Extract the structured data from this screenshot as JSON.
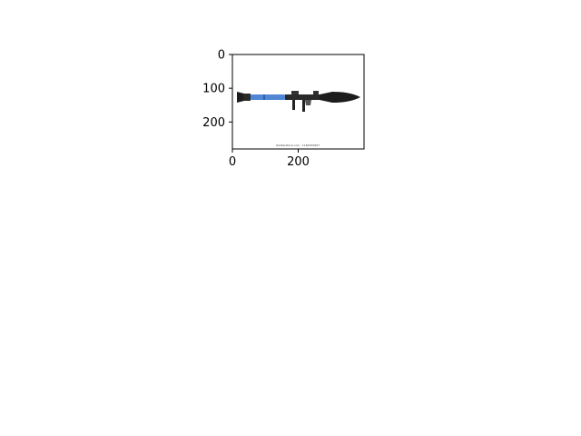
{
  "chart_data": {
    "type": "image",
    "title": "",
    "xlabel": "",
    "ylabel": "",
    "xlim": [
      0,
      400
    ],
    "ylim": [
      280,
      0
    ],
    "x_ticks": [
      0,
      200
    ],
    "y_ticks": [
      0,
      100,
      200
    ],
    "grid": false,
    "image": {
      "subject": "rocket launcher",
      "watermark": "shutterstock.com · 1162072957"
    }
  }
}
